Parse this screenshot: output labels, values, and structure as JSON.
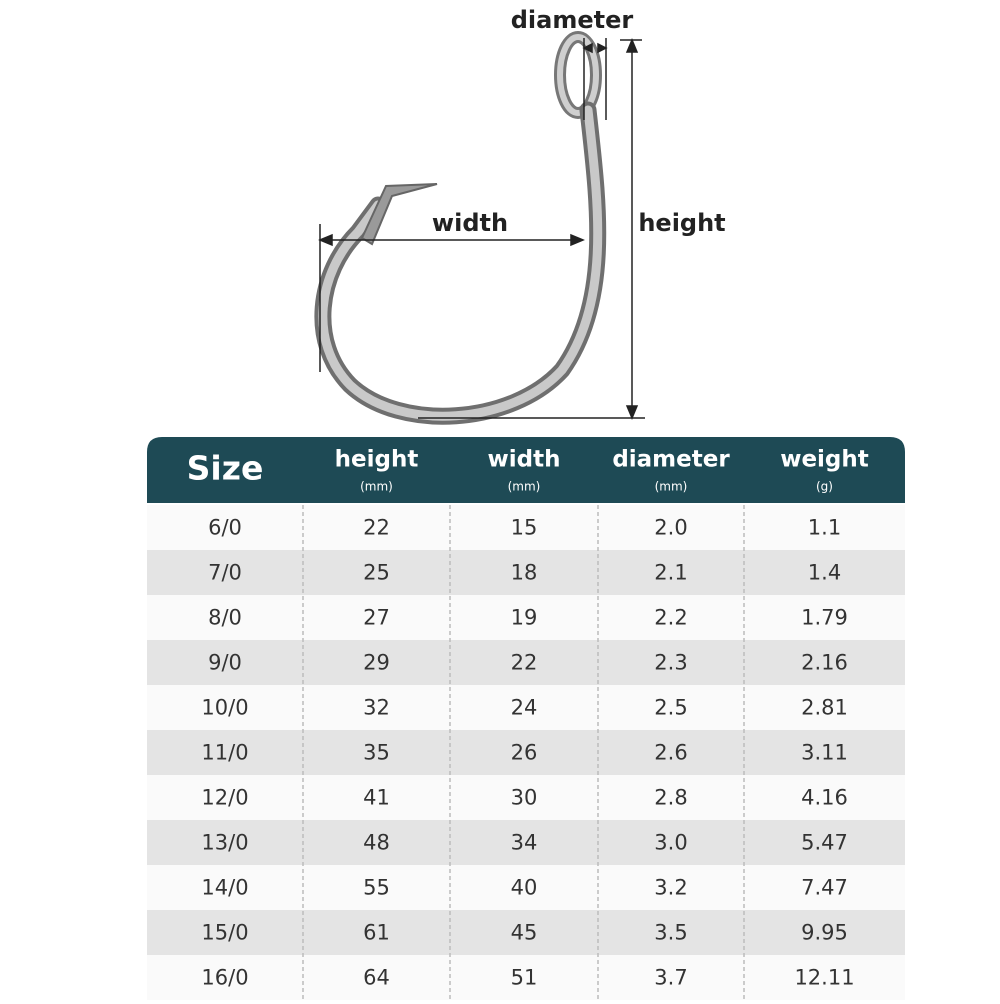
{
  "diagram": {
    "labels": {
      "diameter": "diameter",
      "width": "width",
      "height": "height"
    }
  },
  "table": {
    "header": [
      {
        "label": "Size"
      },
      {
        "label": "height",
        "unit": "(mm)"
      },
      {
        "label": "width",
        "unit": "(mm)"
      },
      {
        "label": "diameter",
        "unit": "(mm)"
      },
      {
        "label": "weight",
        "unit": "(g)"
      }
    ],
    "rows": [
      [
        "6/0",
        "22",
        "15",
        "2.0",
        "1.1"
      ],
      [
        "7/0",
        "25",
        "18",
        "2.1",
        "1.4"
      ],
      [
        "8/0",
        "27",
        "19",
        "2.2",
        "1.79"
      ],
      [
        "9/0",
        "29",
        "22",
        "2.3",
        "2.16"
      ],
      [
        "10/0",
        "32",
        "24",
        "2.5",
        "2.81"
      ],
      [
        "11/0",
        "35",
        "26",
        "2.6",
        "3.11"
      ],
      [
        "12/0",
        "41",
        "30",
        "2.8",
        "4.16"
      ],
      [
        "13/0",
        "48",
        "34",
        "3.0",
        "5.47"
      ],
      [
        "14/0",
        "55",
        "40",
        "3.2",
        "7.47"
      ],
      [
        "15/0",
        "61",
        "45",
        "3.5",
        "9.95"
      ],
      [
        "16/0",
        "64",
        "51",
        "3.7",
        "12.11"
      ]
    ]
  }
}
